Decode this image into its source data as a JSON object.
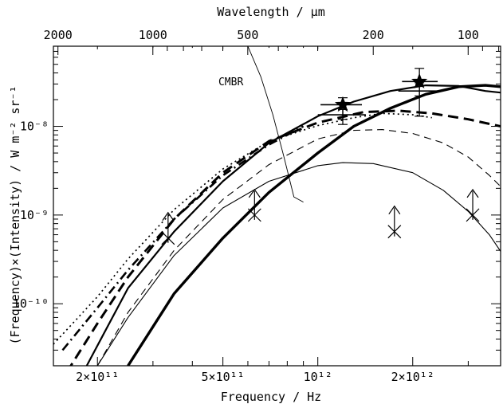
{
  "chart_data": {
    "type": "line",
    "scale": "log-log",
    "xlabel": "Frequency / Hz",
    "x2label": "Wavelength / μm",
    "ylabel": "(Frequency)×(Intensity) / W m⁻² sr⁻¹",
    "xlim": [
      145000000000.0,
      3800000000000.0
    ],
    "ylim": [
      2e-11,
      8e-08
    ],
    "x_ticks": [
      {
        "value": 200000000000.0,
        "label": "2×10¹¹"
      },
      {
        "value": 500000000000.0,
        "label": "5×10¹¹"
      },
      {
        "value": 1000000000000.0,
        "label": "10¹²"
      },
      {
        "value": 2000000000000.0,
        "label": "2×10¹²"
      }
    ],
    "x2_ticks": [
      {
        "value": 2000,
        "label": "2000"
      },
      {
        "value": 1000,
        "label": "1000"
      },
      {
        "value": 500,
        "label": "500"
      },
      {
        "value": 200,
        "label": "200"
      },
      {
        "value": 100,
        "label": "100"
      }
    ],
    "y_ticks": [
      {
        "value": 1e-10,
        "label": "10⁻¹⁰"
      },
      {
        "value": 1e-09,
        "label": "10⁻⁹"
      },
      {
        "value": 1e-08,
        "label": "10⁻⁸"
      }
    ],
    "annotations": [
      {
        "text": "CMBR",
        "x": 530000000000.0,
        "y": 2.9e-08
      }
    ],
    "series": [
      {
        "style": "solid-thick",
        "color": "#000000",
        "x": [
          250000000000.0,
          350000000000.0,
          500000000000.0,
          700000000000.0,
          1000000000000.0,
          1300000000000.0,
          1700000000000.0,
          2200000000000.0,
          2800000000000.0,
          3400000000000.0,
          3800000000000.0
        ],
        "y": [
          2e-11,
          1.3e-10,
          5.5e-10,
          1.8e-09,
          5e-09,
          1e-08,
          1.6e-08,
          2.3e-08,
          2.8e-08,
          2.9e-08,
          2.8e-08
        ]
      },
      {
        "style": "solid-medium",
        "color": "#000000",
        "x": [
          185000000000.0,
          250000000000.0,
          350000000000.0,
          500000000000.0,
          700000000000.0,
          1000000000000.0,
          1300000000000.0,
          1700000000000.0,
          2200000000000.0,
          2800000000000.0,
          3400000000000.0,
          3800000000000.0
        ],
        "y": [
          2e-11,
          1.5e-10,
          6.5e-10,
          2.4e-09,
          6.5e-09,
          1.3e-08,
          1.9e-08,
          2.5e-08,
          2.9e-08,
          2.85e-08,
          2.5e-08,
          2.4e-08
        ]
      },
      {
        "style": "solid-thin",
        "color": "#000000",
        "x": [
          200000000000.0,
          250000000000.0,
          350000000000.0,
          500000000000.0,
          700000000000.0,
          1000000000000.0,
          1200000000000.0,
          1500000000000.0,
          2000000000000.0,
          2500000000000.0,
          3000000000000.0,
          3500000000000.0,
          3800000000000.0
        ],
        "y": [
          2e-11,
          7e-11,
          3.5e-10,
          1.2e-09,
          2.4e-09,
          3.6e-09,
          3.9e-09,
          3.8e-09,
          3e-09,
          1.9e-09,
          1.1e-09,
          6e-10,
          3.9e-10
        ]
      },
      {
        "style": "dashed-thick",
        "color": "#000000",
        "x": [
          160000000000.0,
          200000000000.0,
          250000000000.0,
          350000000000.0,
          500000000000.0,
          700000000000.0,
          1000000000000.0,
          1400000000000.0,
          1800000000000.0,
          2300000000000.0,
          3000000000000.0,
          3800000000000.0
        ],
        "y": [
          1.7e-11,
          6e-11,
          2e-10,
          9e-10,
          3e-09,
          6.8e-09,
          1.1e-08,
          1.45e-08,
          1.5e-08,
          1.4e-08,
          1.2e-08,
          1e-08
        ]
      },
      {
        "style": "dashed-thin",
        "color": "#000000",
        "x": [
          200000000000.0,
          250000000000.0,
          350000000000.0,
          500000000000.0,
          700000000000.0,
          1000000000000.0,
          1300000000000.0,
          1600000000000.0,
          2000000000000.0,
          2500000000000.0,
          3000000000000.0,
          3500000000000.0,
          3800000000000.0
        ],
        "y": [
          2e-11,
          8e-11,
          4e-10,
          1.5e-09,
          3.7e-09,
          7.2e-09,
          9e-09,
          9.2e-09,
          8.3e-09,
          6.5e-09,
          4.5e-09,
          2.8e-09,
          2.1e-09
        ]
      },
      {
        "style": "dotted",
        "color": "#000000",
        "x": [
          145000000000.0,
          200000000000.0,
          250000000000.0,
          350000000000.0,
          500000000000.0,
          700000000000.0,
          1000000000000.0,
          1300000000000.0,
          1600000000000.0,
          2000000000000.0,
          2300000000000.0
        ],
        "y": [
          3.5e-11,
          1.2e-10,
          3.2e-10,
          1.15e-09,
          3.3e-09,
          6.8e-09,
          1.02e-08,
          1.25e-08,
          1.4e-08,
          1.35e-08,
          1.25e-08
        ]
      },
      {
        "style": "dash-dot",
        "color": "#000000",
        "x": [
          155000000000.0,
          200000000000.0,
          250000000000.0,
          350000000000.0,
          500000000000.0,
          700000000000.0,
          900000000000.0
        ],
        "y": [
          3e-11,
          9e-11,
          2.4e-10,
          9e-10,
          2.8e-09,
          6.2e-09,
          1e-08
        ]
      },
      {
        "style": "solid-hair",
        "color": "#000000",
        "x": [
          600000000000.0,
          660000000000.0,
          720000000000.0,
          780000000000.0,
          840000000000.0,
          900000000000.0
        ],
        "y": [
          8e-08,
          3.6e-08,
          1.35e-08,
          4.6e-09,
          1.6e-09,
          1.4e-09
        ]
      }
    ],
    "detections": [
      {
        "marker": "star",
        "x": 1200000000000.0,
        "y": 1.75e-08,
        "x_err": [
          1020000000000.0,
          1380000000000.0
        ],
        "y_err": [
          1.2e-08,
          2.1e-08
        ]
      },
      {
        "marker": "star",
        "x": 2100000000000.0,
        "y": 3.2e-08,
        "x_err": [
          1850000000000.0,
          2400000000000.0
        ],
        "y_err": [
          2.2e-08,
          4.5e-08
        ]
      }
    ],
    "error_points": [
      {
        "x": 1200000000000.0,
        "y": 1.35e-08,
        "x_err": [
          1000000000000.0,
          1420000000000.0
        ],
        "y_err": [
          1.05e-08,
          1.55e-08
        ]
      },
      {
        "x": 2100000000000.0,
        "y": 2.5e-08,
        "x_err": [
          1800000000000.0,
          2420000000000.0
        ],
        "y_err": [
          1.3e-08,
          3.1e-08
        ]
      }
    ],
    "limits": [
      {
        "x": 335000000000.0,
        "y": 5.5e-10
      },
      {
        "x": 630000000000.0,
        "y": 1e-09
      },
      {
        "x": 1750000000000.0,
        "y": 6.5e-10
      },
      {
        "x": 3100000000000.0,
        "y": 1e-09
      }
    ],
    "grid": false,
    "legend": "none"
  }
}
